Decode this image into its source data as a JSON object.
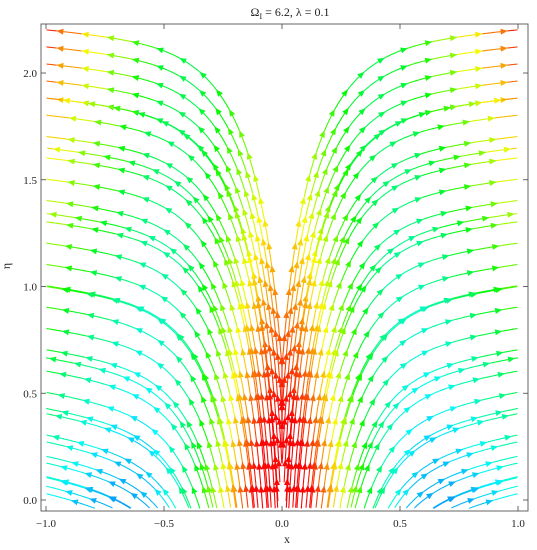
{
  "chart_data": {
    "type": "streamplot",
    "title": "Ω",
    "title_sub": "I",
    "title_rest": " = 6.2, λ = 0.1",
    "xlabel": "x",
    "ylabel": "η",
    "xlim": [
      -1.0,
      1.0
    ],
    "ylim": [
      -0.05,
      2.25
    ],
    "x_ticks": [
      -1.0,
      -0.5,
      0.0,
      0.5,
      1.0
    ],
    "x_tick_labels": [
      "−1.0",
      "−0.5",
      "0.0",
      "0.5",
      "1.0"
    ],
    "y_ticks": [
      0.0,
      0.5,
      1.0,
      1.5,
      2.0
    ],
    "y_tick_labels": [
      "0.0",
      "0.5",
      "1.0",
      "1.5",
      "2.0"
    ],
    "grid": false,
    "stream_seeds": [
      {
        "x0": 0.98,
        "y0": 2.2
      },
      {
        "x0": 0.98,
        "y0": 2.12
      },
      {
        "x0": 0.98,
        "y0": 2.04
      },
      {
        "x0": 0.98,
        "y0": 1.96
      },
      {
        "x0": 0.98,
        "y0": 1.88
      },
      {
        "x0": 0.98,
        "y0": 1.8
      },
      {
        "x0": 0.98,
        "y0": 1.7
      },
      {
        "x0": 0.98,
        "y0": 1.6
      },
      {
        "x0": 0.98,
        "y0": 1.5
      },
      {
        "x0": 0.98,
        "y0": 1.4
      },
      {
        "x0": 0.98,
        "y0": 1.3
      },
      {
        "x0": 0.98,
        "y0": 1.2
      },
      {
        "x0": 0.98,
        "y0": 1.1
      },
      {
        "x0": 0.98,
        "y0": 1.0
      },
      {
        "x0": 0.98,
        "y0": 0.9
      },
      {
        "x0": 0.98,
        "y0": 0.8
      },
      {
        "x0": 0.98,
        "y0": 0.7
      },
      {
        "x0": 0.98,
        "y0": 0.6
      },
      {
        "x0": 0.98,
        "y0": 0.5
      },
      {
        "x0": 0.98,
        "y0": 0.4
      },
      {
        "x0": 0.98,
        "y0": 0.3
      },
      {
        "x0": 0.98,
        "y0": 0.2
      },
      {
        "x0": 0.98,
        "y0": 0.1
      },
      {
        "x0": 0.9,
        "y0": 0.0
      },
      {
        "x0": 0.8,
        "y0": 0.0
      },
      {
        "x0": 0.7,
        "y0": 0.0
      },
      {
        "x0": 0.6,
        "y0": 0.0
      },
      {
        "x0": 0.5,
        "y0": 0.0
      },
      {
        "x0": 0.4,
        "y0": 0.0
      },
      {
        "x0": 0.3,
        "y0": 0.0
      },
      {
        "x0": 0.2,
        "y0": 0.0
      },
      {
        "x0": 0.12,
        "y0": 0.0
      },
      {
        "x0": 0.06,
        "y0": 0.0
      },
      {
        "x0": 0.02,
        "y0": 0.0
      }
    ]
  }
}
